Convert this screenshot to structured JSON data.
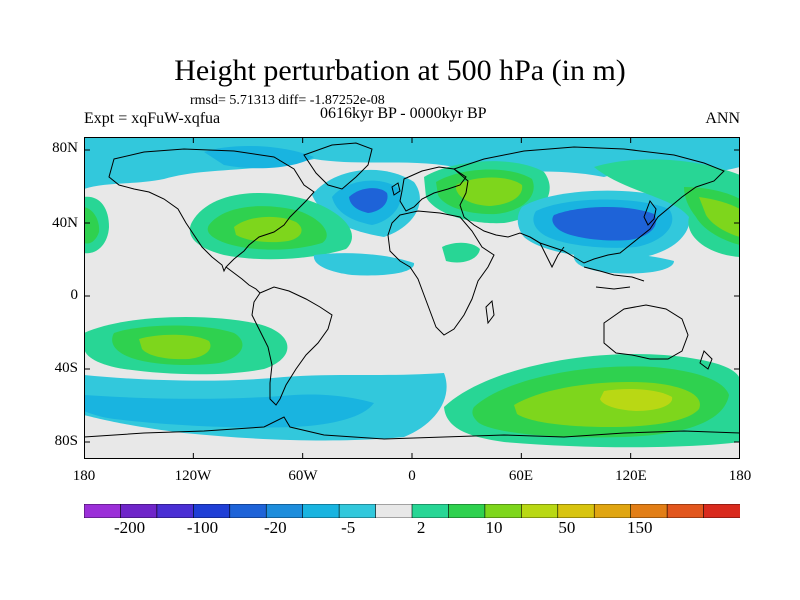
{
  "title": "Height perturbation at 500 hPa (in m)",
  "stats": "rmsd= 5.71313 diff= -1.87252e-08",
  "experiment": "Expt = xqFuW-xqfua",
  "period": "0616kyr BP - 0000kyr BP",
  "season": "ANN",
  "lat_labels": [
    "80N",
    "40N",
    "0",
    "40S",
    "80S"
  ],
  "lon_labels": [
    "180",
    "120W",
    "60W",
    "0",
    "60E",
    "120E",
    "180"
  ],
  "colorbar": {
    "labels": [
      "-200",
      "-100",
      "-20",
      "-5",
      "2",
      "10",
      "50",
      "150"
    ],
    "colors": [
      "#9b2fd8",
      "#6f25c9",
      "#4a2fd4",
      "#1f3fd6",
      "#1e63d8",
      "#1d8ddc",
      "#19b4e0",
      "#32c8dc",
      "#e8e8e8",
      "#28d695",
      "#2fd14f",
      "#7ed61c",
      "#b9d814",
      "#d8c40f",
      "#e0a511",
      "#e27e16",
      "#e2561d",
      "#d92a1d"
    ]
  },
  "chart_data": {
    "type": "heatmap",
    "title": "Height perturbation at 500 hPa (in m)",
    "variable": "500 hPa geopotential height difference (m)",
    "x_range": [
      -180,
      180
    ],
    "y_range": [
      -90,
      90
    ],
    "x_ticks": [
      "180",
      "120W",
      "60W",
      "0",
      "60E",
      "120E",
      "180"
    ],
    "y_ticks": [
      "80N",
      "40N",
      "0",
      "40S",
      "80S"
    ],
    "levels": [
      -200,
      -100,
      -20,
      -5,
      2,
      10,
      50,
      150
    ],
    "features": [
      {
        "region": "Southern Ocean (40E-180E, 40S-70S)",
        "sign": "positive",
        "approx_m": 10
      },
      {
        "region": "South Pacific (160W-90W, 25S-45S)",
        "sign": "positive",
        "approx_m": 10
      },
      {
        "region": "North America (110W-40W, 35N-55N)",
        "sign": "positive",
        "approx_m": 10
      },
      {
        "region": "Central Asia (30E-80E, 40N-60N)",
        "sign": "positive",
        "approx_m": 10
      },
      {
        "region": "North Pacific (150E-180, 35N-55N)",
        "sign": "positive",
        "approx_m": 5
      },
      {
        "region": "Northeast Pacific (180-150W, 35N-50N)",
        "sign": "positive",
        "approx_m": 5
      },
      {
        "region": "North Atlantic/Europe (40W-10E, 45N-60N)",
        "sign": "negative",
        "approx_m": -20
      },
      {
        "region": "East Asia/Northwest Pacific (60E-150E, 30N-50N)",
        "sign": "negative",
        "approx_m": -20
      },
      {
        "region": "Arctic (lat > 65N)",
        "sign": "negative",
        "approx_m": -5
      },
      {
        "region": "Southern mid-latitudes band (50S-65S, 180-40E)",
        "sign": "negative",
        "approx_m": -5
      }
    ]
  }
}
